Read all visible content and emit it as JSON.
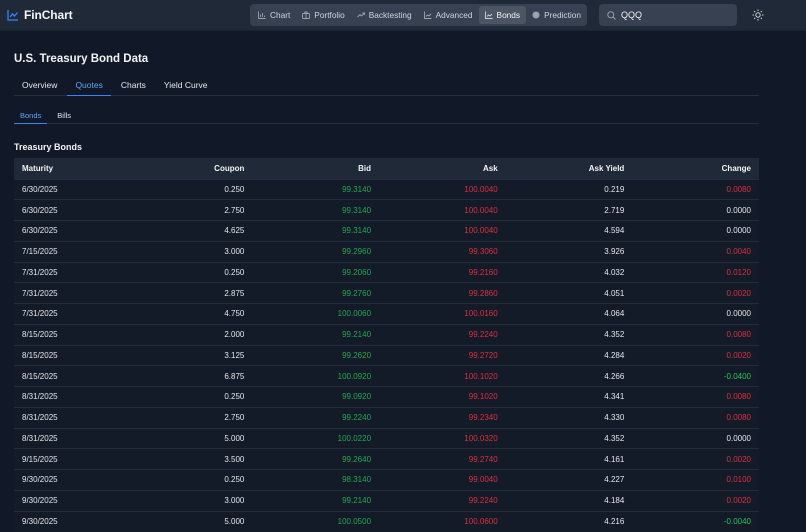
{
  "app": {
    "name": "FinChart",
    "brand_color": "#3b82f6"
  },
  "nav": {
    "items": [
      {
        "label": "Chart",
        "icon": "bar-chart-icon",
        "active": false
      },
      {
        "label": "Portfolio",
        "icon": "briefcase-icon",
        "active": false
      },
      {
        "label": "Backtesting",
        "icon": "trend-up-icon",
        "active": false
      },
      {
        "label": "Advanced",
        "icon": "line-chart-icon",
        "active": false
      },
      {
        "label": "Bonds",
        "icon": "line-chart-icon",
        "active": true
      },
      {
        "label": "Prediction",
        "icon": "circle-icon",
        "active": false
      }
    ]
  },
  "search": {
    "value": "QQQ",
    "placeholder": "Search"
  },
  "page": {
    "title": "U.S. Treasury Bond Data",
    "tabs": [
      {
        "label": "Overview",
        "active": false
      },
      {
        "label": "Quotes",
        "active": true
      },
      {
        "label": "Charts",
        "active": false
      },
      {
        "label": "Yield Curve",
        "active": false
      }
    ],
    "subtabs": [
      {
        "label": "Bonds",
        "active": true
      },
      {
        "label": "Bills",
        "active": false
      }
    ],
    "section_title": "Treasury Bonds"
  },
  "table": {
    "columns": [
      "Maturity",
      "Coupon",
      "Bid",
      "Ask",
      "Ask Yield",
      "Change"
    ],
    "rows": [
      {
        "maturity": "6/30/2025",
        "coupon": "0.250",
        "bid": "99.3140",
        "ask": "100.0040",
        "ask_yield": "0.219",
        "change": "0.0080",
        "change_dir": "red"
      },
      {
        "maturity": "6/30/2025",
        "coupon": "2.750",
        "bid": "99.3140",
        "ask": "100.0040",
        "ask_yield": "2.719",
        "change": "0.0000",
        "change_dir": "neutral"
      },
      {
        "maturity": "6/30/2025",
        "coupon": "4.625",
        "bid": "99.3140",
        "ask": "100.0040",
        "ask_yield": "4.594",
        "change": "0.0000",
        "change_dir": "neutral"
      },
      {
        "maturity": "7/15/2025",
        "coupon": "3.000",
        "bid": "99.2960",
        "ask": "99.3060",
        "ask_yield": "3.926",
        "change": "0.0040",
        "change_dir": "red"
      },
      {
        "maturity": "7/31/2025",
        "coupon": "0.250",
        "bid": "99.2060",
        "ask": "99.2160",
        "ask_yield": "4.032",
        "change": "0.0120",
        "change_dir": "red"
      },
      {
        "maturity": "7/31/2025",
        "coupon": "2.875",
        "bid": "99.2760",
        "ask": "99.2860",
        "ask_yield": "4.051",
        "change": "0.0020",
        "change_dir": "red"
      },
      {
        "maturity": "7/31/2025",
        "coupon": "4.750",
        "bid": "100.0060",
        "ask": "100.0160",
        "ask_yield": "4.064",
        "change": "0.0000",
        "change_dir": "neutral"
      },
      {
        "maturity": "8/15/2025",
        "coupon": "2.000",
        "bid": "99.2140",
        "ask": "99.2240",
        "ask_yield": "4.352",
        "change": "0.0080",
        "change_dir": "red"
      },
      {
        "maturity": "8/15/2025",
        "coupon": "3.125",
        "bid": "99.2620",
        "ask": "99.2720",
        "ask_yield": "4.284",
        "change": "0.0020",
        "change_dir": "red"
      },
      {
        "maturity": "8/15/2025",
        "coupon": "6.875",
        "bid": "100.0920",
        "ask": "100.1020",
        "ask_yield": "4.266",
        "change": "-0.0400",
        "change_dir": "green"
      },
      {
        "maturity": "8/31/2025",
        "coupon": "0.250",
        "bid": "99.0920",
        "ask": "99.1020",
        "ask_yield": "4.341",
        "change": "0.0080",
        "change_dir": "red"
      },
      {
        "maturity": "8/31/2025",
        "coupon": "2.750",
        "bid": "99.2240",
        "ask": "99.2340",
        "ask_yield": "4.330",
        "change": "0.0080",
        "change_dir": "red"
      },
      {
        "maturity": "8/31/2025",
        "coupon": "5.000",
        "bid": "100.0220",
        "ask": "100.0320",
        "ask_yield": "4.352",
        "change": "0.0000",
        "change_dir": "neutral"
      },
      {
        "maturity": "9/15/2025",
        "coupon": "3.500",
        "bid": "99.2640",
        "ask": "99.2740",
        "ask_yield": "4.161",
        "change": "0.0020",
        "change_dir": "red"
      },
      {
        "maturity": "9/30/2025",
        "coupon": "0.250",
        "bid": "98.3140",
        "ask": "99.0040",
        "ask_yield": "4.227",
        "change": "0.0100",
        "change_dir": "red"
      },
      {
        "maturity": "9/30/2025",
        "coupon": "3.000",
        "bid": "99.2140",
        "ask": "99.2240",
        "ask_yield": "4.184",
        "change": "0.0020",
        "change_dir": "red"
      },
      {
        "maturity": "9/30/2025",
        "coupon": "5.000",
        "bid": "100.0500",
        "ask": "100.0600",
        "ask_yield": "4.216",
        "change": "-0.0040",
        "change_dir": "green"
      }
    ]
  },
  "colors": {
    "background": "#111827",
    "topbar": "#1f2937",
    "accent": "#3b82f6",
    "bid_green": "#22a852",
    "ask_red": "#dc2f3f",
    "change_green": "#22c55e"
  }
}
